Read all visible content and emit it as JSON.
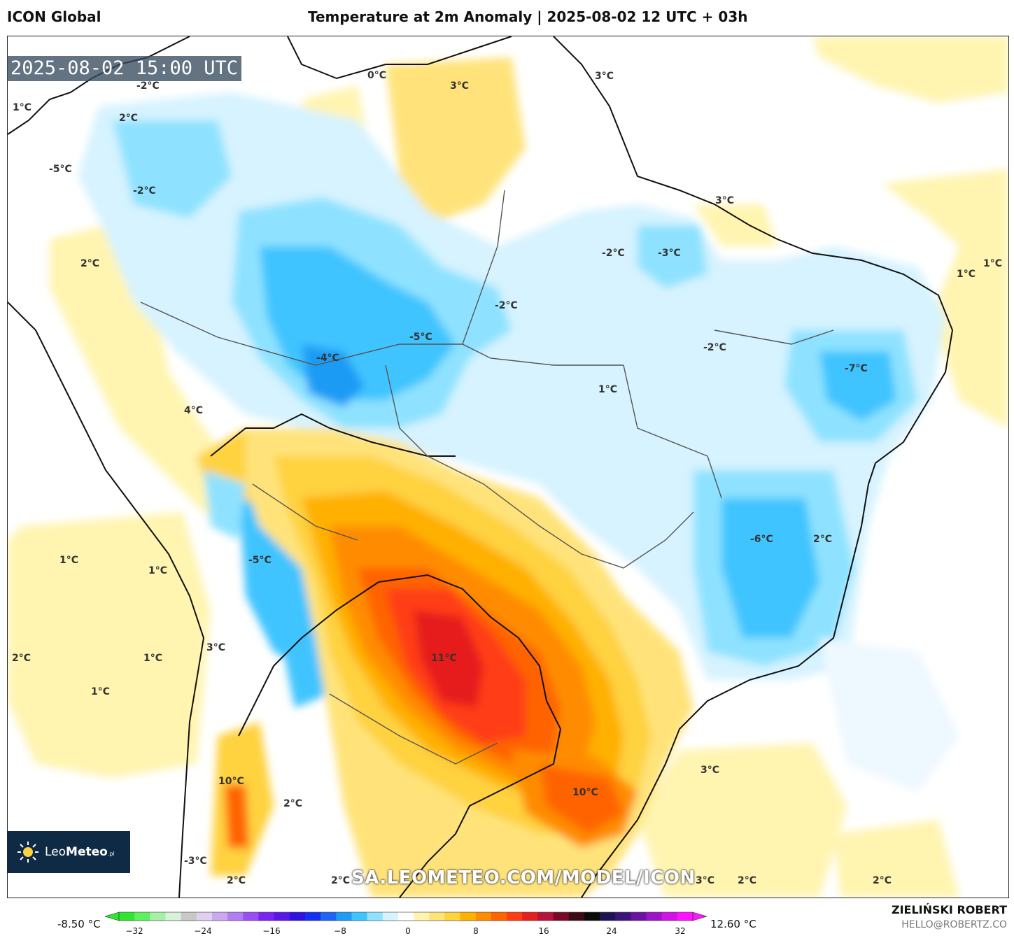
{
  "header": {
    "model": "ICON Global",
    "title": "Temperature at 2m Anomaly | 2025-08-02 12 UTC + 03h"
  },
  "time_badge": "2025-08-02 15:00 UTC",
  "labels": [
    "-2°C",
    "2°C",
    "1°C",
    "-5°C",
    "-2°C",
    "0°C",
    "3°C",
    "3°C",
    "3°C",
    "2°C",
    "-2°C",
    "-3°C",
    "1°C",
    "1°C",
    "-2°C",
    "-5°C",
    "-4°C",
    "-2°C",
    "-7°C",
    "1°C",
    "4°C",
    "1°C",
    "1°C",
    "-5°C",
    "-6°C",
    "2°C",
    "2°C",
    "1°C",
    "3°C",
    "11°C",
    "1°C",
    "10°C",
    "10°C",
    "3°C",
    "2°C",
    "-3°C",
    "2°C",
    "2°C",
    "3°C",
    "2°C",
    "2°C"
  ],
  "watermark": "SA.LEOMETEO.COM/MODEL/ICON",
  "logo": {
    "brand_light": "Leo",
    "brand_bold": "Meteo",
    "suffix": ".pl"
  },
  "legend": {
    "min_label": "-8.50 °C",
    "max_label": "12.60 °C",
    "ticks": [
      "−32",
      "−24",
      "−16",
      "−8",
      "0",
      "8",
      "16",
      "24",
      "32"
    ],
    "colors": [
      "#2ee62e",
      "#5ef05e",
      "#a6f0a6",
      "#d8f2d8",
      "#c8c8c8",
      "#e0d0f0",
      "#c9a8f0",
      "#b07ef2",
      "#9a4ff2",
      "#7a24f0",
      "#5a18e8",
      "#3012e0",
      "#1630f0",
      "#1e64f5",
      "#1e9bf5",
      "#40c4ff",
      "#8ee2ff",
      "#d6f3ff",
      "#ffffff",
      "#fff4b0",
      "#ffe37a",
      "#ffd23f",
      "#ffb000",
      "#ff8c00",
      "#ff6400",
      "#ff3c14",
      "#e61e1e",
      "#b4143c",
      "#780a28",
      "#3c0a14",
      "#0a0a0a",
      "#1c1450",
      "#3a1478",
      "#6a14a0",
      "#a014c8",
      "#d214e6",
      "#ff14ff"
    ]
  },
  "author": {
    "name": "ZIELIŃSKI ROBERT",
    "email": "HELLO@ROBERTZ.CO"
  }
}
